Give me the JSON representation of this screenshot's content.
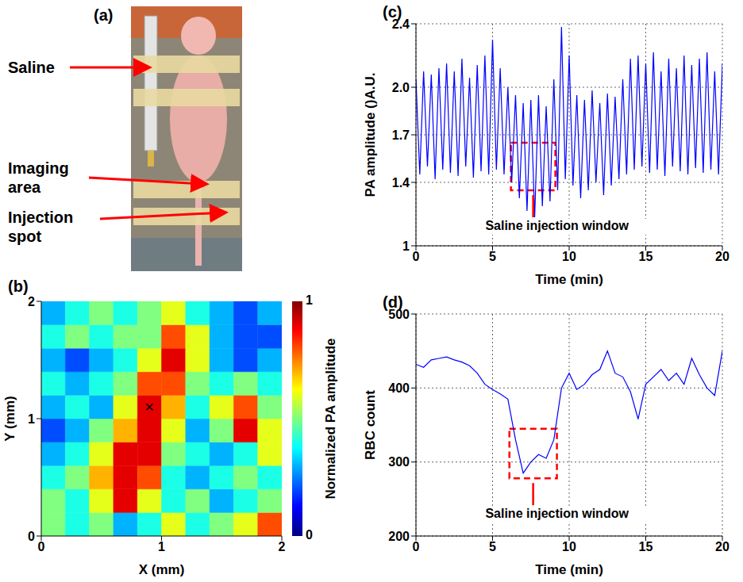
{
  "panel_a": {
    "panel": "(a)",
    "labels": [
      "Saline",
      "Imaging area",
      "Injection spot"
    ]
  },
  "chart_data": [
    {
      "panel": "(b)",
      "type": "heatmap",
      "x_label": "X (mm)",
      "y_label": "Y (mm)",
      "xlim": [
        0,
        2
      ],
      "ylim": [
        0,
        2
      ],
      "xticks": [
        0,
        1,
        2
      ],
      "yticks": [
        0,
        1,
        2
      ],
      "x_bins": [
        0,
        0.2,
        0.4,
        0.6,
        0.8,
        1,
        1.2,
        1.4,
        1.6,
        1.8,
        2
      ],
      "y_bins": [
        0,
        0.2,
        0.4,
        0.6,
        0.8,
        1,
        1.2,
        1.4,
        1.6,
        1.8,
        2
      ],
      "cells": [
        [
          0.5,
          0.4,
          0.5,
          0.3,
          0.4,
          0.6,
          0.4,
          0.5,
          0.6,
          0.8
        ],
        [
          0.5,
          0.4,
          0.6,
          0.9,
          0.6,
          0.4,
          0.5,
          0.3,
          0.4,
          0.5
        ],
        [
          0.4,
          0.5,
          0.7,
          0.9,
          0.8,
          0.4,
          0.3,
          0.4,
          0.5,
          0.4
        ],
        [
          0.3,
          0.4,
          0.6,
          0.9,
          0.9,
          0.5,
          0.4,
          0.3,
          0.4,
          0.6
        ],
        [
          0.2,
          0.3,
          0.5,
          0.7,
          0.9,
          0.6,
          0.3,
          0.5,
          0.9,
          0.6
        ],
        [
          0.3,
          0.4,
          0.3,
          0.6,
          0.9,
          0.7,
          0.4,
          0.6,
          0.8,
          0.5
        ],
        [
          0.4,
          0.3,
          0.4,
          0.5,
          0.8,
          0.8,
          0.5,
          0.4,
          0.5,
          0.4
        ],
        [
          0.3,
          0.2,
          0.3,
          0.4,
          0.6,
          0.9,
          0.6,
          0.3,
          0.2,
          0.3
        ],
        [
          0.4,
          0.5,
          0.4,
          0.5,
          0.5,
          0.8,
          0.6,
          0.3,
          0.2,
          0.2
        ],
        [
          0.3,
          0.4,
          0.5,
          0.4,
          0.5,
          0.6,
          0.4,
          0.3,
          0.2,
          0.3
        ]
      ],
      "colorbar": {
        "label": "Normalized PA amplitude",
        "range": [
          0,
          1
        ],
        "ticks": [
          0,
          1
        ]
      },
      "marker_point": {
        "x": 0.9,
        "y": 1.1,
        "marker": "x",
        "color": "#000000"
      }
    },
    {
      "panel": "(c)",
      "type": "line",
      "x_label": "Time (min)",
      "y_label": "PA amplitude ()A.U.",
      "xlim": [
        0,
        20
      ],
      "xticks": [
        0,
        5,
        10,
        15,
        20
      ],
      "ylim": [
        1,
        2.4
      ],
      "yticks": [
        1,
        1.4,
        1.7,
        {
          "value": 2,
          "label": "2.0"
        },
        2.4
      ],
      "grid": true,
      "color": "#0000ff",
      "x": [
        0,
        0.25,
        0.5,
        0.75,
        1,
        1.25,
        1.5,
        1.75,
        2,
        2.25,
        2.5,
        2.75,
        3,
        3.25,
        3.5,
        3.75,
        4,
        4.25,
        4.5,
        4.75,
        5,
        5.25,
        5.5,
        5.75,
        6,
        6.25,
        6.5,
        6.75,
        7,
        7.25,
        7.5,
        7.75,
        8,
        8.25,
        8.5,
        8.75,
        9,
        9.25,
        9.5,
        9.75,
        10,
        10.25,
        10.5,
        10.75,
        11,
        11.25,
        11.5,
        11.75,
        12,
        12.25,
        12.5,
        12.75,
        13,
        13.25,
        13.5,
        13.75,
        14,
        14.25,
        14.5,
        14.75,
        15,
        15.25,
        15.5,
        15.75,
        16,
        16.25,
        16.5,
        16.75,
        17,
        17.25,
        17.5,
        17.75,
        18,
        18.25,
        18.5,
        18.75,
        19,
        19.25,
        19.5,
        19.75,
        20
      ],
      "values": [
        2.05,
        1.45,
        2.1,
        1.5,
        2.08,
        1.42,
        2.12,
        1.48,
        2.15,
        1.46,
        2.1,
        1.44,
        2.18,
        1.5,
        2.06,
        1.43,
        2.14,
        1.47,
        2.2,
        1.45,
        2.3,
        1.48,
        2.12,
        1.45,
        2.0,
        1.4,
        1.95,
        1.3,
        1.9,
        1.22,
        1.92,
        1.18,
        1.95,
        1.25,
        1.88,
        1.28,
        2.05,
        1.35,
        2.38,
        1.42,
        2.2,
        1.38,
        1.95,
        1.3,
        1.92,
        1.35,
        1.98,
        1.4,
        1.9,
        1.32,
        1.96,
        1.38,
        1.94,
        1.42,
        2.05,
        1.45,
        2.18,
        1.48,
        2.2,
        1.5,
        2.15,
        1.46,
        2.22,
        1.48,
        2.1,
        1.44,
        2.18,
        1.5,
        2.12,
        1.47,
        2.2,
        1.45,
        2.14,
        1.49,
        2.18,
        1.46,
        2.22,
        1.48,
        2.1,
        1.45,
        2.15
      ],
      "annotation": {
        "text": "Saline injection window",
        "box_x": [
          6.2,
          9.1
        ],
        "box_y": [
          1.35,
          1.65
        ],
        "color": "#ff0000",
        "line_style": "dashed"
      }
    },
    {
      "panel": "(d)",
      "type": "line",
      "x_label": "Time (min)",
      "y_label": null,
      "xlim": [
        0,
        20
      ],
      "xticks": [
        0,
        5,
        10,
        15,
        20
      ],
      "ylim": [
        200,
        500
      ],
      "yticks": [
        200,
        300,
        400,
        500
      ],
      "grid": true,
      "color": "#0000ff",
      "series_label": "RBC count",
      "x": [
        0,
        0.5,
        1,
        1.5,
        2,
        2.5,
        3,
        3.5,
        4,
        4.5,
        5,
        5.5,
        6,
        6.5,
        7,
        7.5,
        8,
        8.5,
        9,
        9.5,
        10,
        10.5,
        11,
        11.5,
        12,
        12.5,
        13,
        13.5,
        14,
        14.5,
        15,
        15.5,
        16,
        16.5,
        17,
        17.5,
        18,
        18.5,
        19,
        19.5,
        20
      ],
      "values": [
        432,
        428,
        438,
        440,
        442,
        438,
        435,
        430,
        420,
        405,
        398,
        392,
        385,
        330,
        285,
        300,
        310,
        305,
        330,
        400,
        420,
        398,
        405,
        418,
        425,
        450,
        420,
        415,
        395,
        358,
        405,
        415,
        425,
        410,
        420,
        405,
        440,
        418,
        400,
        390,
        450
      ],
      "annotation": {
        "text": "Saline injection window",
        "box_x": [
          6.1,
          9.2
        ],
        "box_y": [
          278,
          345
        ],
        "color": "#ff0000",
        "line_style": "dashed"
      }
    }
  ]
}
